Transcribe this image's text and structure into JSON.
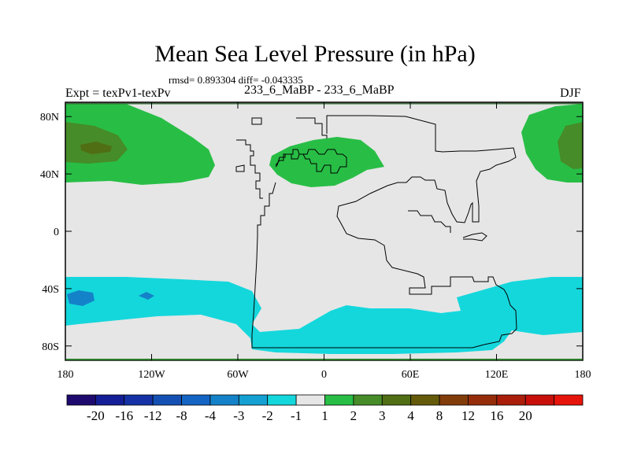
{
  "title": "Mean Sea Level Pressure (in hPa)",
  "stats": "rmsd= 0.893304  diff= -0.043335",
  "left_label": "Expt = texPv1-texPv",
  "center_label": "233_6_MaBP - 233_6_MaBP",
  "right_label": "DJF",
  "map": {
    "lon_range": [
      -180,
      180
    ],
    "lat_range": [
      -90,
      90
    ],
    "x_ticks": [
      {
        "lon": -180,
        "label": "180"
      },
      {
        "lon": -120,
        "label": "120W"
      },
      {
        "lon": -60,
        "label": "60W"
      },
      {
        "lon": 0,
        "label": "0"
      },
      {
        "lon": 60,
        "label": "60E"
      },
      {
        "lon": 120,
        "label": "120E"
      },
      {
        "lon": 180,
        "label": "180"
      }
    ],
    "y_ticks": [
      {
        "lat": 80,
        "label": "80N"
      },
      {
        "lat": 40,
        "label": "40N"
      },
      {
        "lat": 0,
        "label": "0"
      },
      {
        "lat": -40,
        "label": "40S"
      },
      {
        "lat": -80,
        "label": "80S"
      }
    ],
    "background_color": "#e6e6e6"
  },
  "colorbar": {
    "colors": [
      "#1e0a6e",
      "#141e96",
      "#1432a5",
      "#1450b4",
      "#1464c3",
      "#1482c8",
      "#14a0d2",
      "#14d7dc",
      "#e6e6e6",
      "#28be46",
      "#468c28",
      "#506e14",
      "#645a0a",
      "#823c0a",
      "#962d0a",
      "#aa1e0a",
      "#c80f0a",
      "#e6140a"
    ],
    "labels": [
      "-20",
      "-16",
      "-12",
      "-8",
      "-4",
      "-3",
      "-2",
      "-1",
      "1",
      "2",
      "3",
      "4",
      "8",
      "12",
      "16",
      "20"
    ]
  }
}
